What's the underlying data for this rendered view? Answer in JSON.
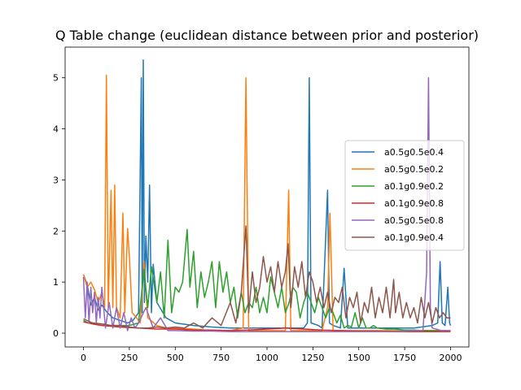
{
  "chart_data": {
    "type": "line",
    "title": "Q Table change (euclidean distance between prior and posterior)",
    "xlabel": "",
    "ylabel": "",
    "xlim": [
      -100,
      2100
    ],
    "ylim": [
      -0.27,
      5.6
    ],
    "xticks": [
      0,
      250,
      500,
      750,
      1000,
      1250,
      1500,
      1750,
      2000
    ],
    "xtick_labels": [
      "0",
      "250",
      "500",
      "750",
      "1000",
      "1250",
      "1500",
      "1750",
      "2000"
    ],
    "yticks": [
      0,
      1,
      2,
      3,
      4,
      5
    ],
    "ytick_labels": [
      "0",
      "1",
      "2",
      "3",
      "4",
      "5"
    ],
    "grid": false,
    "legend_position": "center-right",
    "series": [
      {
        "name": "a0.5g0.5e0.4",
        "color": "#1f77b4",
        "x": [
          0,
          20,
          40,
          60,
          80,
          100,
          130,
          160,
          200,
          240,
          270,
          300,
          315,
          320,
          326,
          332,
          340,
          350,
          360,
          370,
          380,
          400,
          450,
          500,
          600,
          700,
          800,
          900,
          1000,
          1100,
          1200,
          1220,
          1230,
          1240,
          1280,
          1300,
          1330,
          1340,
          1360,
          1400,
          1420,
          1440,
          1500,
          1600,
          1700,
          1800,
          1900,
          1930,
          1943,
          1955,
          1970,
          1985,
          1995,
          2000
        ],
        "y": [
          1.15,
          0.95,
          0.55,
          0.7,
          0.45,
          0.55,
          0.4,
          0.3,
          0.25,
          0.2,
          0.25,
          0.4,
          5.0,
          0.4,
          5.35,
          0.6,
          1.9,
          1.0,
          2.9,
          0.4,
          1.35,
          0.6,
          0.3,
          0.2,
          0.15,
          0.12,
          0.1,
          0.1,
          0.1,
          0.1,
          0.1,
          0.2,
          5.0,
          0.2,
          0.15,
          0.1,
          2.8,
          0.2,
          0.15,
          0.1,
          1.27,
          0.1,
          0.1,
          0.1,
          0.1,
          0.1,
          0.15,
          0.2,
          1.4,
          0.2,
          0.15,
          0.9,
          0.2,
          0.15
        ]
      },
      {
        "name": "a0.5g0.5e0.2",
        "color": "#ff7f0e",
        "x": [
          0,
          20,
          40,
          60,
          80,
          100,
          115,
          125,
          135,
          150,
          160,
          170,
          180,
          190,
          200,
          215,
          225,
          240,
          250,
          265,
          290,
          310,
          330,
          350,
          400,
          450,
          500,
          600,
          700,
          800,
          870,
          885,
          900,
          950,
          1000,
          1100,
          1118,
          1130,
          1200,
          1300,
          1330,
          1343,
          1360,
          1400,
          1500,
          1600,
          1700,
          1800,
          1900,
          2000
        ],
        "y": [
          1.15,
          0.9,
          1.0,
          0.85,
          0.6,
          0.8,
          0.5,
          5.05,
          0.5,
          2.8,
          0.5,
          2.9,
          0.5,
          0.4,
          0.3,
          2.35,
          0.4,
          2.05,
          1.5,
          0.4,
          0.3,
          0.2,
          1.4,
          0.3,
          0.15,
          0.1,
          0.1,
          0.08,
          0.05,
          0.05,
          0.1,
          5.0,
          0.05,
          0.05,
          0.05,
          0.05,
          2.8,
          0.05,
          0.05,
          0.05,
          0.5,
          2.35,
          0.05,
          0.05,
          0.05,
          0.05,
          0.05,
          0.05,
          0.05,
          0.05
        ]
      },
      {
        "name": "a0.1g0.9e0.2",
        "color": "#2ca02c",
        "x": [
          0,
          25,
          50,
          100,
          150,
          200,
          250,
          300,
          330,
          350,
          370,
          400,
          420,
          440,
          460,
          480,
          500,
          520,
          540,
          565,
          580,
          600,
          620,
          640,
          660,
          680,
          700,
          720,
          740,
          760,
          780,
          800,
          820,
          840,
          860,
          880,
          900,
          920,
          940,
          960,
          980,
          1000,
          1020,
          1040,
          1060,
          1080,
          1100,
          1120,
          1140,
          1160,
          1180,
          1200,
          1220,
          1240,
          1260,
          1280,
          1300,
          1320,
          1340,
          1360,
          1380,
          1400,
          1420,
          1440,
          1460,
          1480,
          1500,
          1520,
          1540,
          1560,
          1580,
          1600,
          1650,
          1700,
          1750,
          1800,
          1850,
          1900,
          1950,
          2000
        ],
        "y": [
          0.25,
          0.2,
          0.2,
          0.18,
          0.15,
          0.15,
          0.15,
          0.2,
          1.25,
          0.5,
          1.3,
          0.6,
          1.2,
          0.3,
          1.82,
          0.4,
          0.9,
          0.8,
          1.0,
          2.03,
          0.9,
          1.6,
          0.5,
          1.2,
          0.7,
          1.0,
          1.4,
          0.5,
          1.4,
          0.8,
          1.2,
          0.6,
          0.9,
          0.3,
          0.8,
          0.4,
          0.6,
          0.5,
          0.9,
          0.4,
          0.7,
          0.4,
          1.1,
          0.8,
          0.5,
          0.9,
          0.4,
          0.6,
          0.9,
          0.8,
          0.3,
          0.6,
          0.8,
          0.6,
          0.4,
          0.7,
          0.5,
          0.3,
          0.5,
          0.4,
          0.2,
          0.35,
          0.1,
          0.15,
          0.12,
          0.4,
          0.1,
          0.3,
          0.1,
          0.1,
          0.15,
          0.1,
          0.08,
          0.08,
          0.06,
          0.06,
          0.05,
          0.05,
          0.05,
          0.05
        ]
      },
      {
        "name": "a0.1g0.9e0.8",
        "color": "#d62728",
        "x": [
          0,
          50,
          100,
          200,
          300,
          400,
          500,
          600,
          700,
          800,
          900,
          1000,
          1100,
          1200,
          1300,
          1400,
          1500,
          1600,
          1700,
          1800,
          1900,
          2000
        ],
        "y": [
          0.22,
          0.18,
          0.15,
          0.12,
          0.1,
          0.08,
          0.08,
          0.06,
          0.06,
          0.05,
          0.06,
          0.08,
          0.1,
          0.08,
          0.06,
          0.05,
          0.04,
          0.04,
          0.03,
          0.03,
          0.03,
          0.03
        ]
      },
      {
        "name": "a0.5g0.5e0.8",
        "color": "#9467bd",
        "x": [
          0,
          10,
          20,
          30,
          40,
          50,
          60,
          70,
          80,
          90,
          100,
          120,
          140,
          160,
          180,
          200,
          220,
          240,
          260,
          280,
          300,
          340,
          380,
          420,
          460,
          500,
          600,
          700,
          800,
          900,
          1000,
          1100,
          1200,
          1300,
          1400,
          1500,
          1600,
          1700,
          1800,
          1850,
          1870,
          1880,
          1890,
          1900,
          1950,
          2000
        ],
        "y": [
          1.1,
          0.3,
          1.0,
          0.2,
          0.9,
          0.4,
          0.8,
          0.2,
          0.7,
          0.3,
          0.9,
          0.1,
          0.6,
          0.1,
          0.5,
          0.1,
          0.4,
          0.05,
          0.3,
          0.1,
          0.2,
          0.5,
          0.1,
          0.3,
          0.05,
          0.05,
          0.04,
          0.04,
          0.03,
          0.03,
          0.03,
          0.03,
          0.03,
          0.03,
          0.03,
          0.03,
          0.03,
          0.03,
          0.05,
          0.05,
          1.2,
          5.0,
          0.5,
          0.1,
          0.05,
          0.05
        ]
      },
      {
        "name": "a0.1g0.9e0.4",
        "color": "#8c564b",
        "x": [
          0,
          50,
          100,
          150,
          200,
          250,
          300,
          350,
          400,
          450,
          500,
          550,
          600,
          650,
          700,
          750,
          800,
          830,
          860,
          885,
          900,
          920,
          940,
          960,
          980,
          1000,
          1020,
          1040,
          1060,
          1080,
          1100,
          1115,
          1130,
          1150,
          1170,
          1190,
          1210,
          1230,
          1250,
          1270,
          1290,
          1310,
          1330,
          1350,
          1370,
          1390,
          1410,
          1430,
          1450,
          1470,
          1490,
          1510,
          1530,
          1550,
          1570,
          1590,
          1610,
          1630,
          1650,
          1670,
          1690,
          1700,
          1720,
          1740,
          1760,
          1780,
          1800,
          1820,
          1840,
          1860,
          1880,
          1900,
          1920,
          1940,
          1960,
          1980,
          2000
        ],
        "y": [
          0.28,
          0.2,
          0.18,
          0.15,
          0.15,
          0.12,
          0.1,
          0.1,
          0.12,
          0.1,
          0.12,
          0.1,
          0.2,
          0.1,
          0.3,
          0.15,
          0.6,
          0.2,
          0.8,
          2.1,
          0.4,
          1.2,
          0.6,
          0.9,
          1.5,
          1.0,
          1.3,
          0.8,
          1.4,
          0.9,
          1.2,
          1.75,
          0.5,
          1.3,
          0.9,
          1.4,
          0.7,
          1.2,
          1.0,
          0.6,
          0.9,
          0.5,
          0.8,
          0.4,
          0.7,
          0.6,
          0.9,
          0.3,
          0.7,
          0.5,
          0.8,
          0.2,
          0.6,
          0.4,
          0.9,
          0.3,
          0.7,
          0.4,
          0.9,
          0.3,
          1.05,
          0.4,
          0.8,
          0.3,
          0.6,
          0.3,
          0.5,
          0.2,
          0.7,
          0.3,
          0.6,
          0.2,
          0.5,
          0.3,
          0.4,
          0.3,
          0.3
        ]
      }
    ]
  }
}
